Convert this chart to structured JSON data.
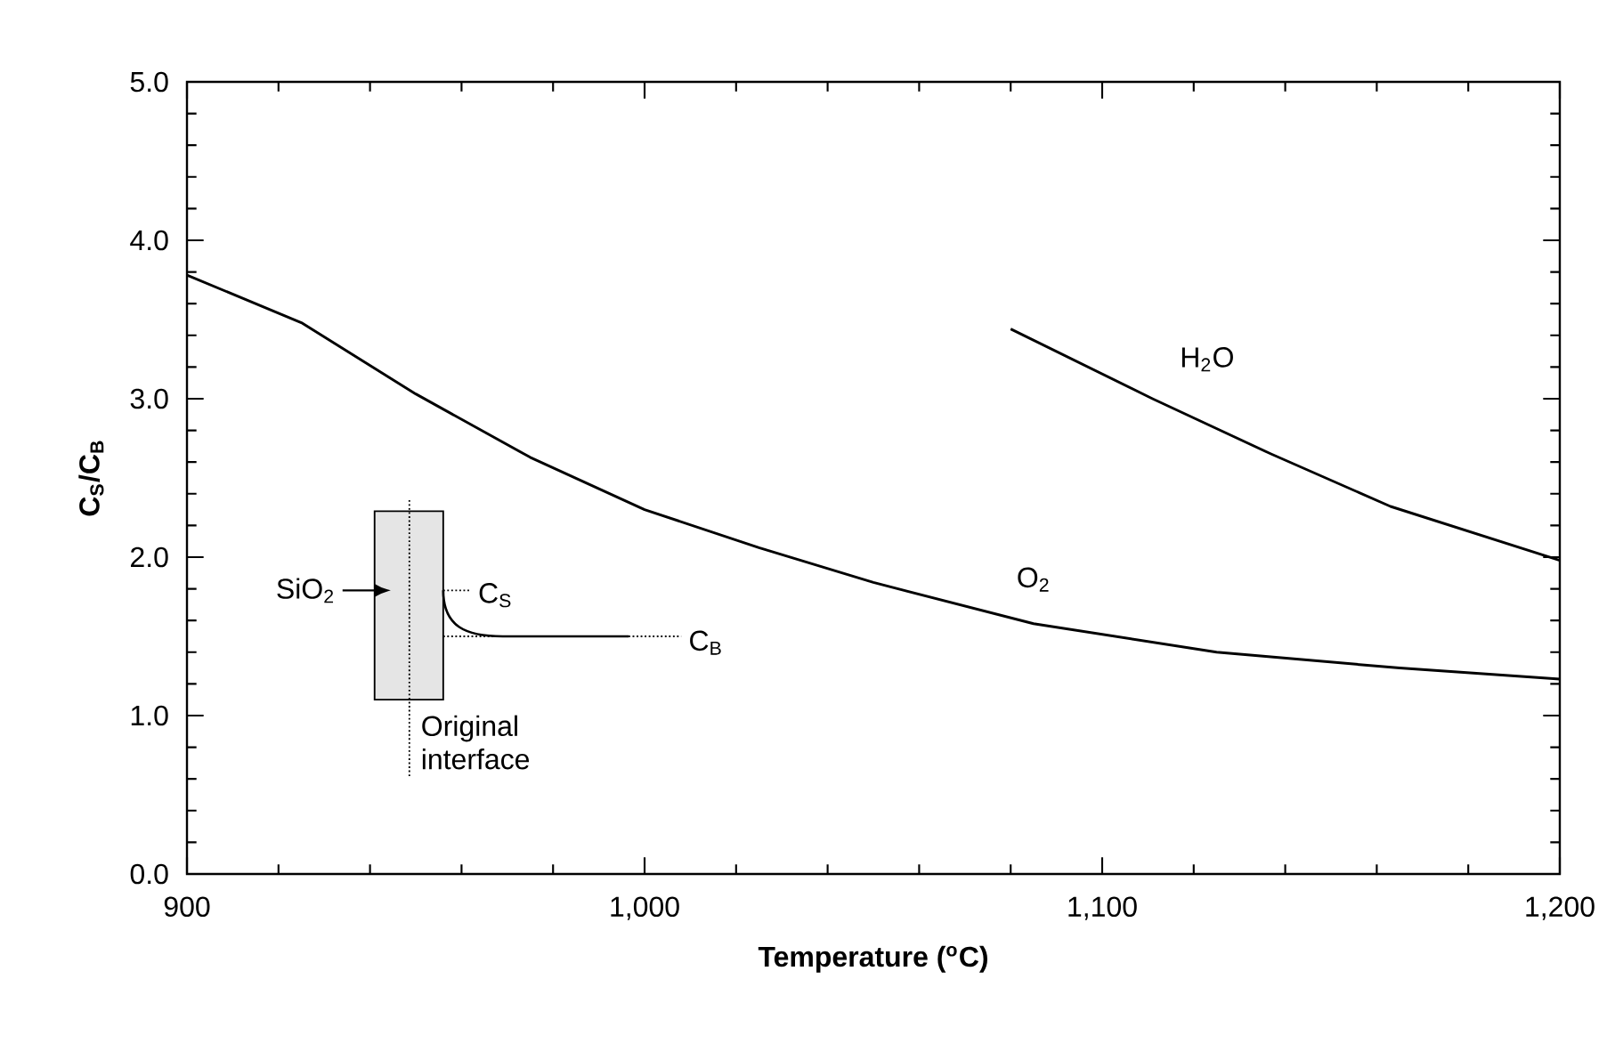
{
  "chart_data": {
    "type": "line",
    "xlabel": "Temperature ($^{o}$C)",
    "ylabel": "C$_{S}$/C$_{B}$",
    "xlim": [
      900,
      1200
    ],
    "ylim": [
      0,
      5
    ],
    "xticks": [
      900,
      {
        "value": 920,
        "label": null
      },
      {
        "value": 940,
        "label": null
      },
      {
        "value": 960,
        "label": null
      },
      {
        "value": 980,
        "label": null
      },
      {
        "value": 1000,
        "label": "1,000"
      },
      {
        "value": 1020,
        "label": null
      },
      {
        "value": 1040,
        "label": null
      },
      {
        "value": 1060,
        "label": null
      },
      {
        "value": 1080,
        "label": null
      },
      {
        "value": 1100,
        "label": "1,100"
      },
      {
        "value": 1120,
        "label": null
      },
      {
        "value": 1140,
        "label": null
      },
      {
        "value": 1160,
        "label": null
      },
      {
        "value": 1180,
        "label": null
      },
      {
        "value": 1200,
        "label": "1,200"
      }
    ],
    "yticks": [
      {
        "value": 0,
        "label": "0.0"
      },
      {
        "value": 0.2,
        "label": null
      },
      {
        "value": 0.4,
        "label": null
      },
      {
        "value": 0.6,
        "label": null
      },
      {
        "value": 0.8,
        "label": null
      },
      {
        "value": 1,
        "label": "1.0"
      },
      {
        "value": 1.2,
        "label": null
      },
      {
        "value": 1.4,
        "label": null
      },
      {
        "value": 1.6,
        "label": null
      },
      {
        "value": 1.8,
        "label": null
      },
      {
        "value": 2,
        "label": "2.0"
      },
      {
        "value": 2.2,
        "label": null
      },
      {
        "value": 2.4,
        "label": null
      },
      {
        "value": 2.6,
        "label": null
      },
      {
        "value": 2.8,
        "label": null
      },
      {
        "value": 3,
        "label": "3.0"
      },
      {
        "value": 3.2,
        "label": null
      },
      {
        "value": 3.4,
        "label": null
      },
      {
        "value": 3.6,
        "label": null
      },
      {
        "value": 3.8,
        "label": null
      },
      {
        "value": 4,
        "label": "4.0"
      },
      {
        "value": 4.2,
        "label": null
      },
      {
        "value": 4.4,
        "label": null
      },
      {
        "value": 4.6,
        "label": null
      },
      {
        "value": 4.8,
        "label": null
      },
      {
        "value": 5,
        "label": "5.0"
      }
    ],
    "line_style": "solid",
    "series": [
      {
        "name": "O$_{2}$",
        "color": "#000000",
        "x": [
          900,
          925,
          950,
          975,
          1000,
          1025,
          1050,
          1085,
          1125,
          1165,
          1200
        ],
        "values": [
          3.78,
          3.48,
          3.03,
          2.63,
          2.3,
          2.06,
          1.84,
          1.58,
          1.4,
          1.3,
          1.23
        ]
      },
      {
        "name": "H$_{2}$O",
        "color": "#000000",
        "x": [
          1080,
          1111,
          1137,
          1163,
          1200
        ],
        "values": [
          3.44,
          3.0,
          2.65,
          2.32,
          1.98
        ]
      }
    ],
    "annotations": [
      "SiO$_{2}$",
      "C$_{S}$",
      "C$_{B}$",
      "Original interface"
    ]
  }
}
